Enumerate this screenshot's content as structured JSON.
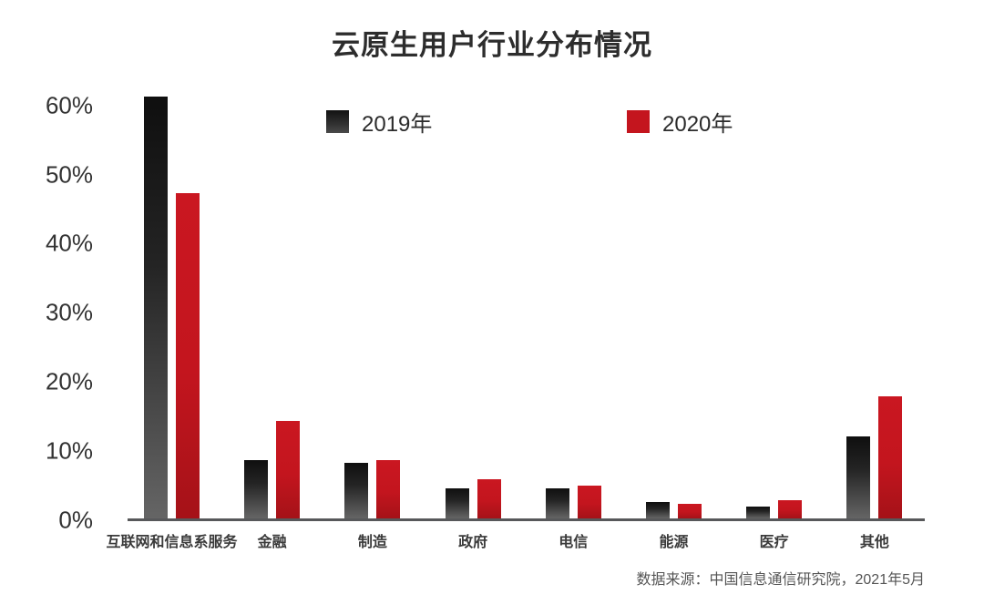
{
  "title": "云原生用户行业分布情况",
  "source": "数据来源：中国信息通信研究院，2021年5月",
  "colors": {
    "series_2019_top": "#0f0f0f",
    "series_2019_bottom": "#656565",
    "series_2020": "#c4151e",
    "axis_line": "#57585a",
    "text": "#2d2d2d",
    "background": "#ffffff"
  },
  "chart_data": {
    "type": "bar",
    "title": "云原生用户行业分布情况",
    "categories": [
      "互联网和信息系服务",
      "金融",
      "制造",
      "政府",
      "电信",
      "能源",
      "医疗",
      "其他"
    ],
    "series": [
      {
        "name": "2019年",
        "color": "#1a1a1a",
        "values": [
          61,
          8.4,
          8.0,
          4.4,
          4.3,
          2.4,
          1.7,
          11.9
        ]
      },
      {
        "name": "2020年",
        "color": "#c4151e",
        "values": [
          47,
          14.1,
          8.4,
          5.7,
          4.7,
          2.1,
          2.6,
          17.6
        ]
      }
    ],
    "xlabel": "",
    "ylabel": "",
    "ylim": [
      0,
      60
    ],
    "y_ticks": [
      "0%",
      "10%",
      "20%",
      "30%",
      "40%",
      "50%",
      "60%"
    ],
    "y_tick_values": [
      0,
      10,
      20,
      30,
      40,
      50,
      60
    ],
    "unit": "%",
    "grid": false,
    "legend_position": "top-inside",
    "source_note": "数据来源：中国信息通信研究院，2021年5月"
  }
}
